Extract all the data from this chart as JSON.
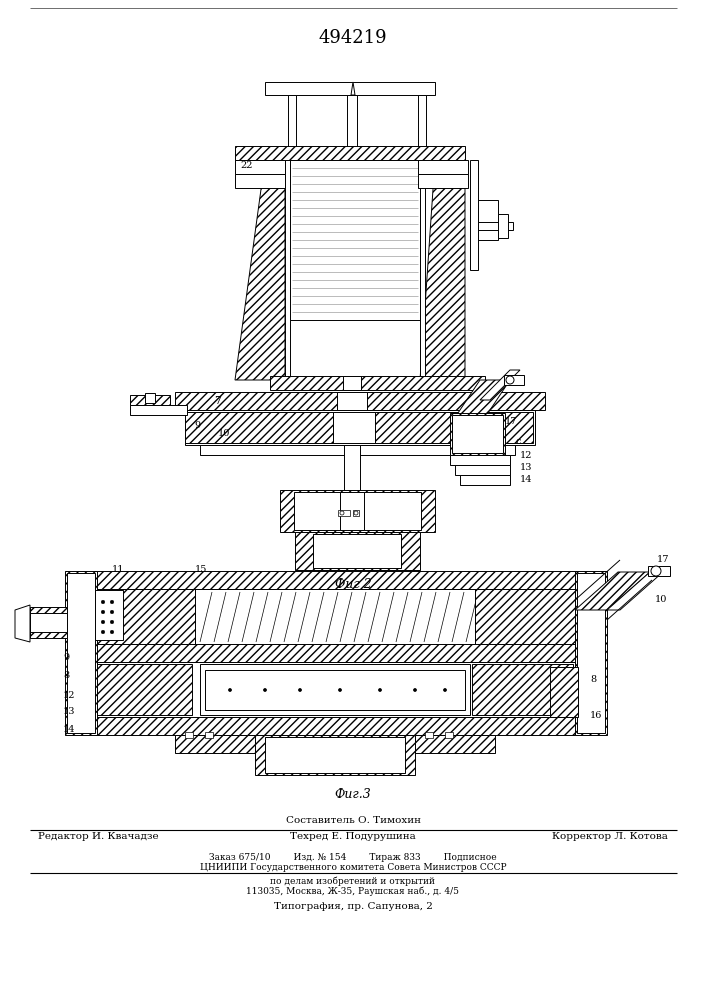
{
  "patent_number": "494219",
  "fig2_caption": "Фиг 2",
  "fig3_caption": "Фиг.3",
  "footer_line1": "Составитель О. Тимохин",
  "footer_line2_left": "Редактор И. Квачадзе",
  "footer_line2_mid": "Техред Е. Подурушина",
  "footer_line2_right": "Корректор Л. Котова",
  "footer_line3": "Заказ 675/10        Изд. № 154        Тираж 833        Подписное",
  "footer_line4": "ЦНИИПИ Государственного комитета Совета Министров СССР",
  "footer_line5": "по делам изобретений и открытий",
  "footer_line6": "113035, Москва, Ж-35, Раушская наб., д. 4/5",
  "footer_line7": "Типография, пр. Сапунова, 2",
  "bg_color": "#ffffff",
  "line_color": "#000000"
}
